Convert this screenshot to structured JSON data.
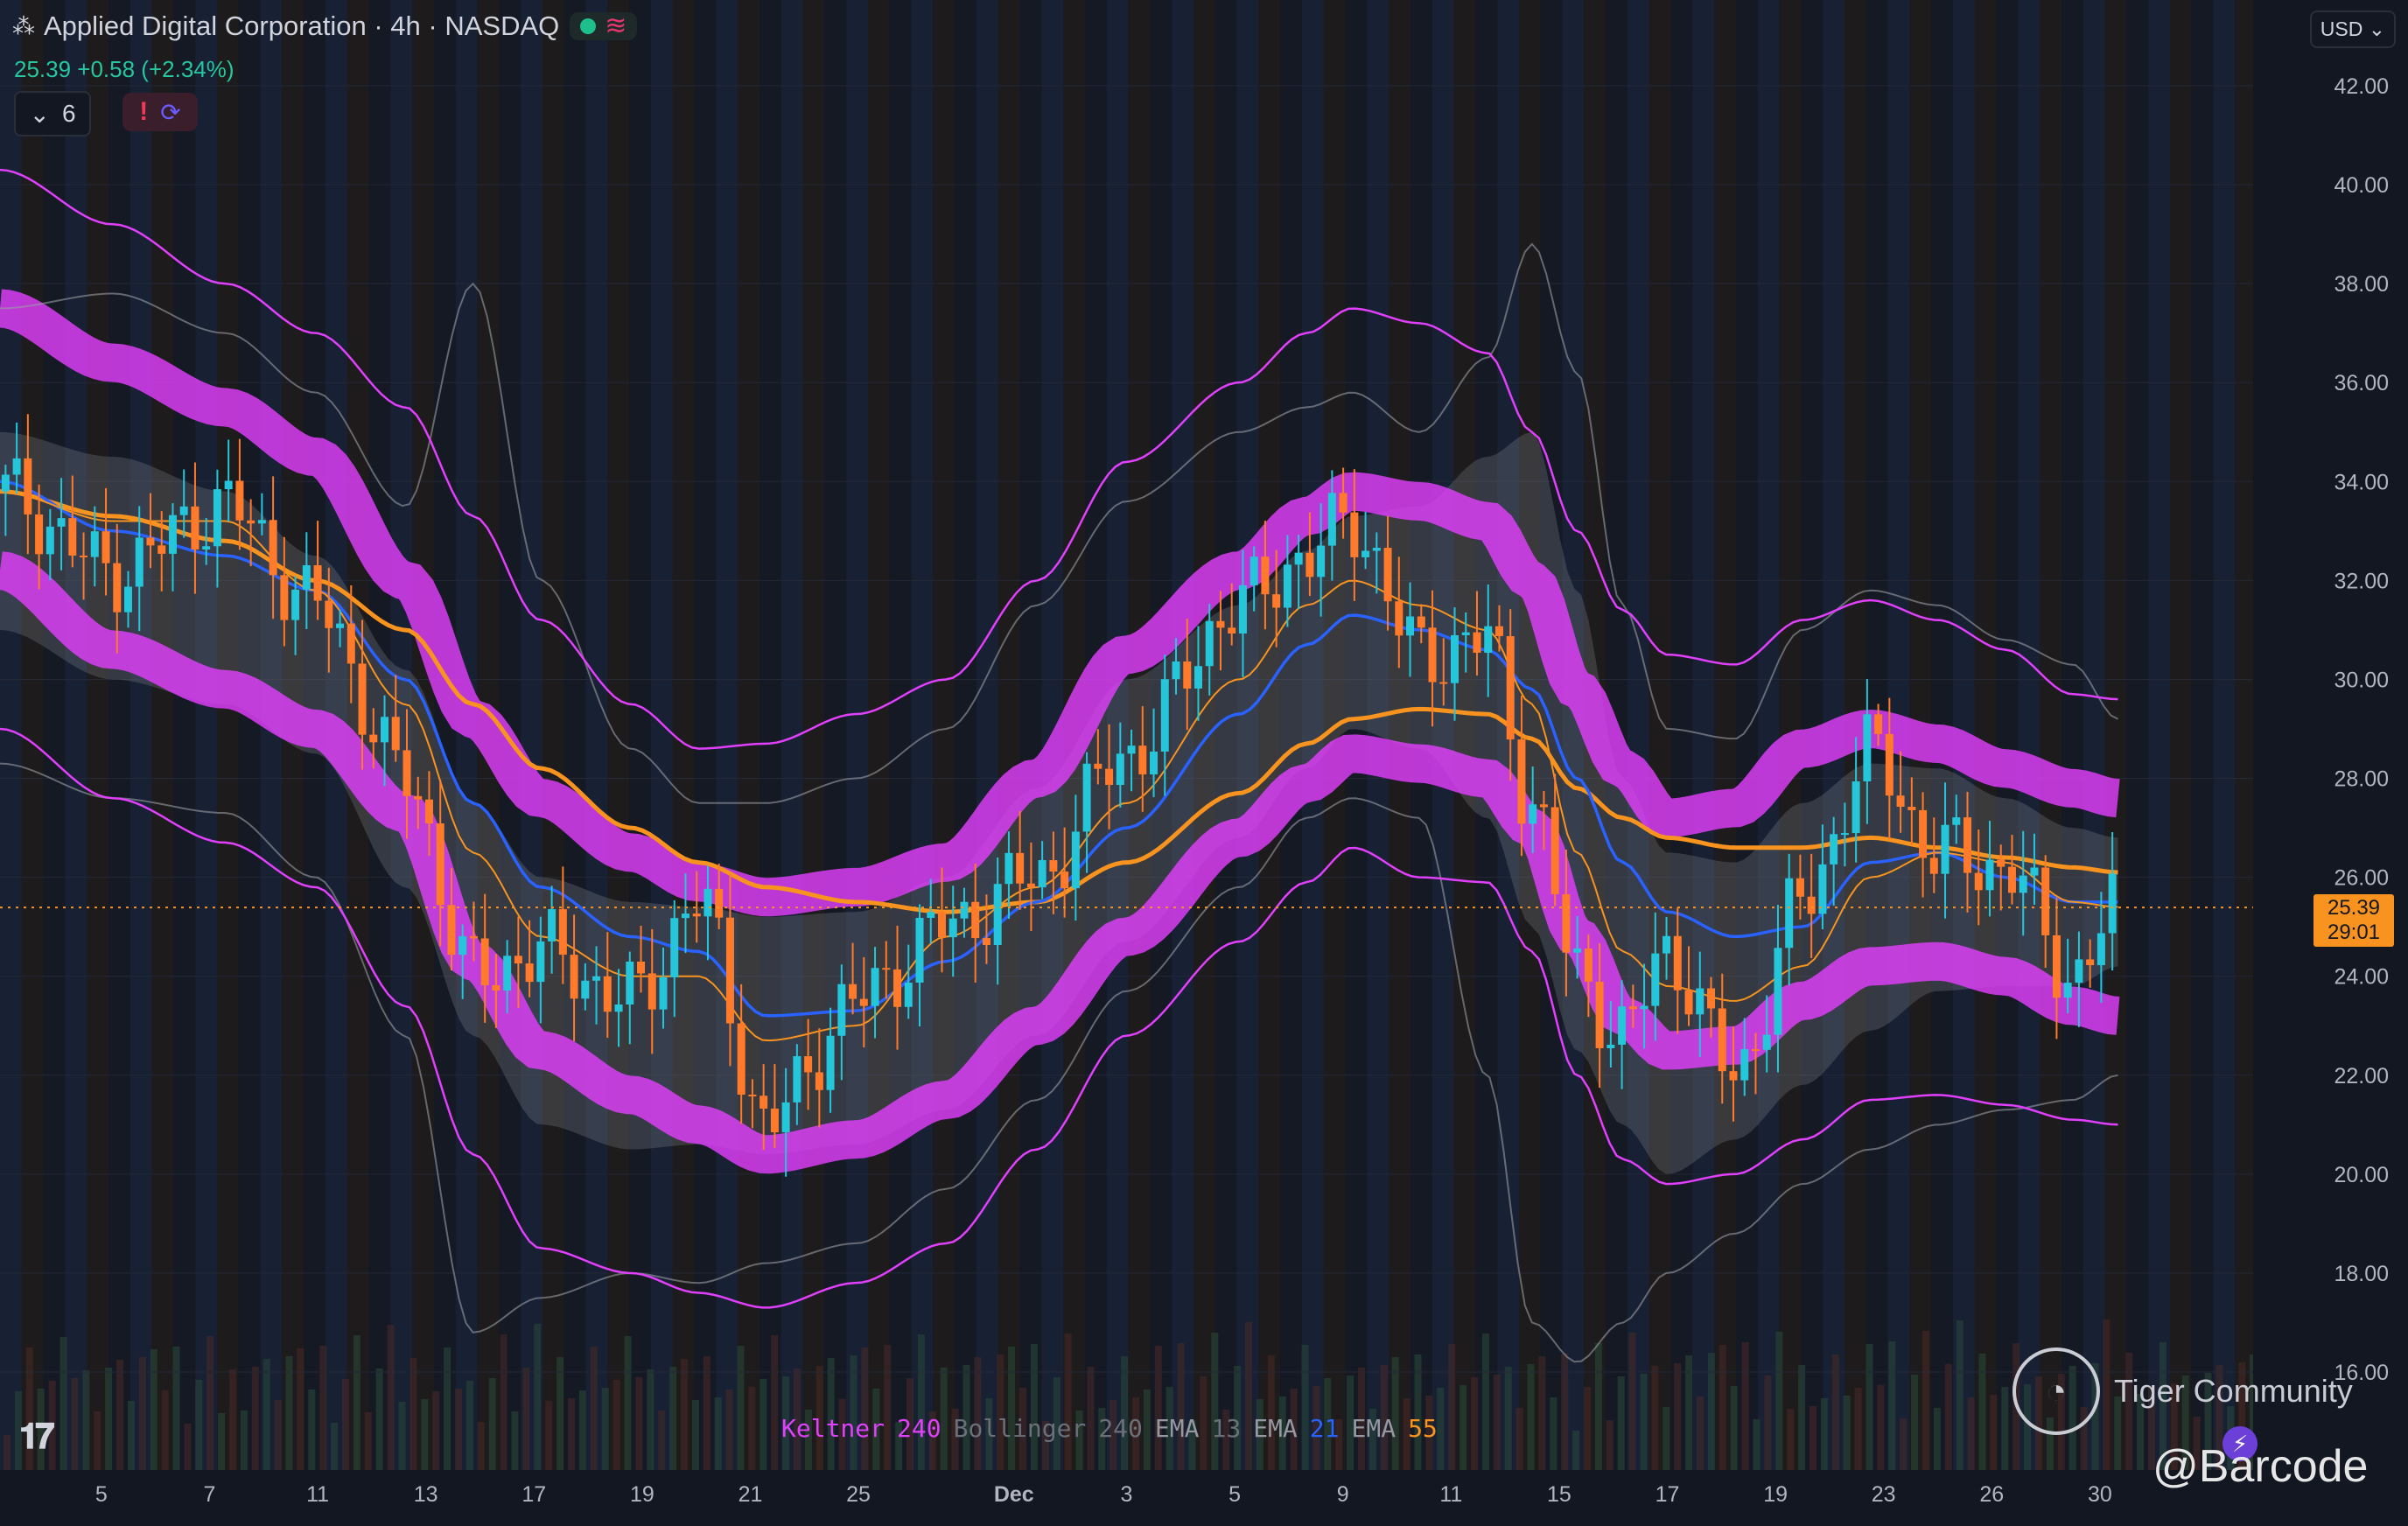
{
  "header": {
    "title": "Applied Digital Corporation · 4h · NASDAQ",
    "price_line": "25.39 +0.58 (+2.34%)",
    "indicator_count": "6",
    "currency": "USD"
  },
  "price_badge": {
    "price": "25.39",
    "countdown": "29:01"
  },
  "legend": [
    {
      "name": "Keltner",
      "param": "240",
      "name_color": "#e040fb",
      "param_color": "#e040fb"
    },
    {
      "name": "Bollinger",
      "param": "240",
      "name_color": "#6b6f78",
      "param_color": "#6b6f78"
    },
    {
      "name": "EMA",
      "param": "13",
      "name_color": "#9598a1",
      "param_color": "#6b6f78"
    },
    {
      "name": "EMA",
      "param": "21",
      "name_color": "#9598a1",
      "param_color": "#2962ff"
    },
    {
      "name": "EMA",
      "param": "55",
      "name_color": "#9598a1",
      "param_color": "#f7931e"
    }
  ],
  "watermark": {
    "brand": "Tiger Community",
    "handle": "@Barcode"
  },
  "colors": {
    "up": "#26c6da",
    "down": "#ff7a2a",
    "keltner": "#e040fb",
    "bollinger": "#8a8d94",
    "ema13": "#f7931e",
    "ema21": "#2962ff",
    "ema55": "#f7931e"
  },
  "chart_data": {
    "type": "candlestick",
    "yticks": [
      16,
      18,
      20,
      22,
      24,
      26,
      28,
      30,
      32,
      34,
      36,
      38,
      40,
      42
    ],
    "ytick_labels": [
      "16.00",
      "18.00",
      "20.00",
      "22.00",
      "24.00",
      "26.00",
      "28.00",
      "30.00",
      "32.00",
      "34.00",
      "36.00",
      "38.00",
      "40.00",
      "42.00"
    ],
    "ylim": [
      15.5,
      42.5
    ],
    "xlim": [
      0,
      100
    ],
    "xticks": [
      {
        "x": 4.5,
        "label": "5"
      },
      {
        "x": 9.3,
        "label": "7"
      },
      {
        "x": 14.1,
        "label": "11"
      },
      {
        "x": 18.9,
        "label": "13"
      },
      {
        "x": 23.7,
        "label": "17"
      },
      {
        "x": 28.5,
        "label": "19"
      },
      {
        "x": 33.3,
        "label": "21"
      },
      {
        "x": 38.1,
        "label": "25"
      },
      {
        "x": 45.0,
        "label": "Dec",
        "bold": true
      },
      {
        "x": 50.0,
        "label": "3"
      },
      {
        "x": 54.8,
        "label": "5"
      },
      {
        "x": 59.6,
        "label": "9"
      },
      {
        "x": 64.4,
        "label": "11"
      },
      {
        "x": 69.2,
        "label": "15"
      },
      {
        "x": 74.0,
        "label": "17"
      },
      {
        "x": 78.8,
        "label": "19"
      },
      {
        "x": 83.6,
        "label": "23"
      },
      {
        "x": 88.4,
        "label": "26"
      },
      {
        "x": 93.2,
        "label": "30"
      }
    ],
    "current_price": 25.39,
    "anchors": {
      "x": [
        0,
        5,
        10,
        14,
        18,
        21,
        24,
        28,
        31,
        34,
        38,
        42,
        46,
        50,
        55,
        58,
        60,
        63,
        66,
        68,
        70,
        72,
        74,
        77,
        80,
        83,
        86,
        89,
        92,
        94
      ],
      "close": [
        33.8,
        32.2,
        33.5,
        31.5,
        28.0,
        24.0,
        24.5,
        23.5,
        25.5,
        21.0,
        23.5,
        25.0,
        26.0,
        28.5,
        31.5,
        32.5,
        33.2,
        30.5,
        30.8,
        27.5,
        24.0,
        22.8,
        24.5,
        22.0,
        25.5,
        28.5,
        26.5,
        26.2,
        24.0,
        25.4
      ],
      "ema13": [
        33.8,
        33.2,
        33.2,
        31.8,
        29.5,
        26.5,
        24.8,
        24.0,
        24.0,
        22.7,
        23.0,
        24.8,
        25.8,
        27.5,
        30.0,
        31.5,
        32.0,
        31.5,
        31.0,
        29.5,
        26.5,
        24.5,
        23.8,
        23.5,
        24.2,
        26.0,
        26.5,
        26.3,
        25.5,
        25.4
      ],
      "ema21": [
        34.0,
        33.0,
        32.5,
        31.8,
        30.0,
        27.5,
        25.8,
        24.8,
        24.5,
        23.2,
        23.3,
        24.3,
        25.5,
        27.0,
        29.3,
        30.7,
        31.3,
        31.0,
        30.6,
        29.8,
        28.0,
        26.3,
        25.3,
        24.8,
        25.0,
        26.3,
        26.5,
        26.0,
        25.5,
        25.5
      ],
      "ema55": [
        33.8,
        33.3,
        32.8,
        32.0,
        31.0,
        29.5,
        28.2,
        27.0,
        26.3,
        25.8,
        25.5,
        25.3,
        25.5,
        26.3,
        27.7,
        28.7,
        29.2,
        29.4,
        29.3,
        28.8,
        27.8,
        27.2,
        26.8,
        26.6,
        26.6,
        26.8,
        26.6,
        26.4,
        26.2,
        26.1
      ],
      "kc_mid_up": [
        37.5,
        36.4,
        35.5,
        34.5,
        32.0,
        29.2,
        27.6,
        26.5,
        25.9,
        25.6,
        25.8,
        26.3,
        28.0,
        30.5,
        32.2,
        33.3,
        33.8,
        33.6,
        33.2,
        32.0,
        29.8,
        28.2,
        27.2,
        27.4,
        28.6,
        29.0,
        28.7,
        28.2,
        27.8,
        27.6
      ],
      "kc_mid_lo": [
        32.2,
        30.6,
        29.8,
        29.0,
        27.3,
        24.3,
        22.5,
        21.6,
        21.0,
        20.4,
        20.7,
        21.5,
        23.0,
        24.8,
        26.8,
        27.9,
        28.5,
        28.3,
        28.0,
        27.0,
        24.8,
        23.2,
        22.5,
        22.6,
        23.5,
        24.2,
        24.3,
        24.0,
        23.4,
        23.2
      ],
      "kc_out_up": [
        40.3,
        39.2,
        38.0,
        37.0,
        35.5,
        33.3,
        31.2,
        29.5,
        28.6,
        28.7,
        29.3,
        30.0,
        32.0,
        34.4,
        36.0,
        37.0,
        37.5,
        37.2,
        36.6,
        35.0,
        33.0,
        31.4,
        30.5,
        30.3,
        31.2,
        31.6,
        31.2,
        30.6,
        29.7,
        29.6
      ],
      "kc_out_lo": [
        29.0,
        27.6,
        26.7,
        25.8,
        23.4,
        20.4,
        18.5,
        18.0,
        17.6,
        17.3,
        17.8,
        18.6,
        20.5,
        22.8,
        24.7,
        25.9,
        26.6,
        26.0,
        25.9,
        24.5,
        22.0,
        20.3,
        19.8,
        20.0,
        20.7,
        21.5,
        21.6,
        21.4,
        21.1,
        21.0
      ],
      "bb_mid_up": [
        35.0,
        34.5,
        33.8,
        32.5,
        30.2,
        27.5,
        26.0,
        25.5,
        25.4,
        25.2,
        25.3,
        26.0,
        27.8,
        30.0,
        31.5,
        32.6,
        33.3,
        33.5,
        34.5,
        35.0,
        31.8,
        28.0,
        26.5,
        26.3,
        27.5,
        28.3,
        28.2,
        27.6,
        27.0,
        26.8
      ],
      "bb_mid_lo": [
        31.0,
        30.0,
        29.5,
        28.5,
        25.8,
        22.8,
        21.0,
        20.5,
        20.6,
        20.4,
        20.6,
        21.3,
        22.8,
        24.7,
        26.8,
        28.2,
        29.0,
        28.6,
        27.2,
        25.0,
        22.5,
        21.0,
        20.0,
        20.7,
        21.8,
        22.9,
        23.7,
        23.8,
        23.8,
        24.2
      ],
      "bb_out_up": [
        37.5,
        37.8,
        37.0,
        35.8,
        33.5,
        38.0,
        32.0,
        28.6,
        27.5,
        27.5,
        28.0,
        29.0,
        31.5,
        33.6,
        35.0,
        35.5,
        35.8,
        35.0,
        36.5,
        38.8,
        36.2,
        31.5,
        29.0,
        28.8,
        31.0,
        31.8,
        31.5,
        30.8,
        30.3,
        29.2
      ],
      "bb_out_lo": [
        28.3,
        27.6,
        27.3,
        26.0,
        22.8,
        16.8,
        17.5,
        18.0,
        17.8,
        18.2,
        18.6,
        19.7,
        21.5,
        23.7,
        25.8,
        27.2,
        27.6,
        27.2,
        22.0,
        17.0,
        16.2,
        17.0,
        18.0,
        18.8,
        19.8,
        20.5,
        21.0,
        21.3,
        21.5,
        22.0
      ]
    }
  }
}
